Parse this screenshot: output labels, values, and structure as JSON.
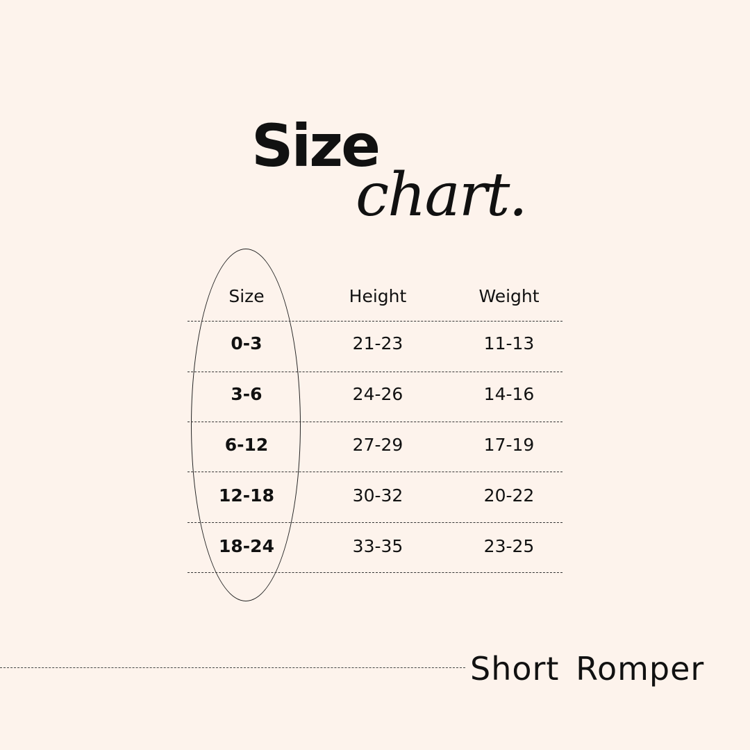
{
  "title": {
    "main": "Size",
    "script": "chart."
  },
  "table": {
    "headers": [
      "Size",
      "Height",
      "Weight"
    ],
    "rows": [
      [
        "0-3",
        "21-23",
        "11-13"
      ],
      [
        "3-6",
        "24-26",
        "14-16"
      ],
      [
        "6-12",
        "27-29",
        "17-19"
      ],
      [
        "12-18",
        "30-32",
        "20-22"
      ],
      [
        "18-24",
        "33-35",
        "23-25"
      ]
    ]
  },
  "footer": {
    "product": "Short Romper"
  },
  "colors": {
    "background": "#fdf3ec",
    "text": "#111111"
  }
}
